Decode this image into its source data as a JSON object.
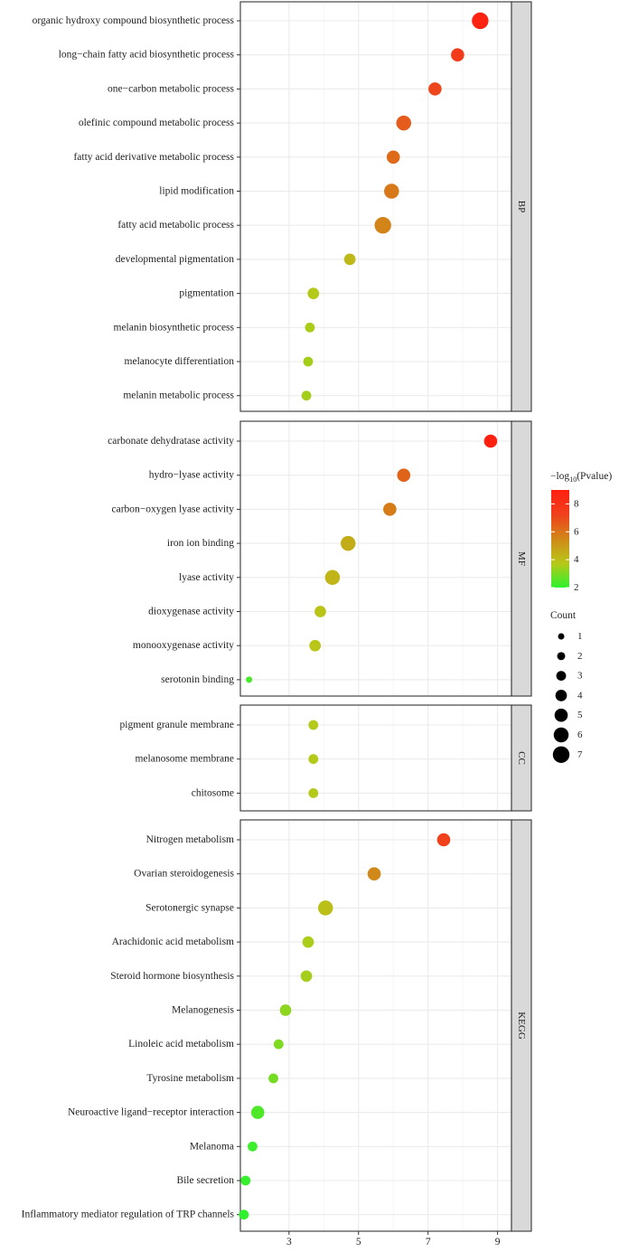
{
  "chart_data": {
    "type": "scatter",
    "subtype": "dot-plot enrichment",
    "x_ticks": [
      3,
      5,
      7,
      9
    ],
    "xlim": [
      1.6,
      9.4
    ],
    "color_scale": {
      "title": "−log10(Pvalue)",
      "title_base": "−log",
      "title_sub": "10",
      "title_rest": "(Pvalue)",
      "min": 2,
      "max": 9,
      "ticks": [
        2,
        4,
        6,
        8
      ],
      "stops": [
        "#2ef22e",
        "#b8c818",
        "#d08818",
        "#f0401c",
        "#ff2010"
      ]
    },
    "size_legend": {
      "title": "Count",
      "values": [
        1,
        2,
        3,
        4,
        5,
        6,
        7
      ]
    },
    "panels": [
      {
        "name": "BP",
        "terms": [
          {
            "label": "organic hydroxy compound biosynthetic process",
            "x": 8.5,
            "count": 7,
            "p": 8.9
          },
          {
            "label": "long−chain fatty acid biosynthetic process",
            "x": 7.85,
            "count": 5,
            "p": 7.6
          },
          {
            "label": "one−carbon metabolic process",
            "x": 7.2,
            "count": 5,
            "p": 7.1
          },
          {
            "label": "olefinic compound metabolic process",
            "x": 6.3,
            "count": 6,
            "p": 6.6
          },
          {
            "label": "fatty acid derivative metabolic process",
            "x": 6.0,
            "count": 5,
            "p": 6.2
          },
          {
            "label": "lipid modification",
            "x": 5.95,
            "count": 6,
            "p": 5.9
          },
          {
            "label": "fatty acid metabolic process",
            "x": 5.7,
            "count": 7,
            "p": 5.6
          },
          {
            "label": "developmental pigmentation",
            "x": 4.75,
            "count": 4,
            "p": 4.2
          },
          {
            "label": "pigmentation",
            "x": 3.7,
            "count": 4,
            "p": 3.7
          },
          {
            "label": "melanin biosynthetic process",
            "x": 3.6,
            "count": 3,
            "p": 3.6
          },
          {
            "label": "melanocyte differentiation",
            "x": 3.55,
            "count": 3,
            "p": 3.5
          },
          {
            "label": "melanin metabolic process",
            "x": 3.5,
            "count": 3,
            "p": 3.5
          }
        ]
      },
      {
        "name": "MF",
        "terms": [
          {
            "label": "carbonate dehydratase activity",
            "x": 8.8,
            "count": 5,
            "p": 9.0
          },
          {
            "label": "hydro−lyase activity",
            "x": 6.3,
            "count": 5,
            "p": 6.4
          },
          {
            "label": "carbon−oxygen lyase activity",
            "x": 5.9,
            "count": 5,
            "p": 5.8
          },
          {
            "label": "iron ion binding",
            "x": 4.7,
            "count": 6,
            "p": 4.5
          },
          {
            "label": "lyase activity",
            "x": 4.25,
            "count": 6,
            "p": 4.3
          },
          {
            "label": "dioxygenase activity",
            "x": 3.9,
            "count": 4,
            "p": 3.9
          },
          {
            "label": "monooxygenase activity",
            "x": 3.75,
            "count": 4,
            "p": 3.8
          },
          {
            "label": "serotonin binding",
            "x": 1.85,
            "count": 1,
            "p": 2.3
          }
        ]
      },
      {
        "name": "CC",
        "terms": [
          {
            "label": "pigment granule membrane",
            "x": 3.7,
            "count": 3,
            "p": 3.7
          },
          {
            "label": "melanosome membrane",
            "x": 3.7,
            "count": 3,
            "p": 3.7
          },
          {
            "label": "chitosome",
            "x": 3.7,
            "count": 3,
            "p": 3.7
          }
        ]
      },
      {
        "name": "KEGG",
        "terms": [
          {
            "label": "Nitrogen metabolism",
            "x": 7.45,
            "count": 5,
            "p": 7.2
          },
          {
            "label": "Ovarian steroidogenesis",
            "x": 5.45,
            "count": 5,
            "p": 5.5
          },
          {
            "label": "Serotonergic synapse",
            "x": 4.05,
            "count": 6,
            "p": 4.0
          },
          {
            "label": "Arachidonic acid metabolism",
            "x": 3.55,
            "count": 4,
            "p": 3.6
          },
          {
            "label": "Steroid hormone biosynthesis",
            "x": 3.5,
            "count": 4,
            "p": 3.5
          },
          {
            "label": "Melanogenesis",
            "x": 2.9,
            "count": 4,
            "p": 3.2
          },
          {
            "label": "Linoleic acid metabolism",
            "x": 2.7,
            "count": 3,
            "p": 3.0
          },
          {
            "label": "Tyrosine metabolism",
            "x": 2.55,
            "count": 3,
            "p": 2.9
          },
          {
            "label": "Neuroactive ligand−receptor interaction",
            "x": 2.1,
            "count": 5,
            "p": 2.4
          },
          {
            "label": "Melanoma",
            "x": 1.95,
            "count": 3,
            "p": 2.2
          },
          {
            "label": "Bile secretion",
            "x": 1.75,
            "count": 3,
            "p": 2.1
          },
          {
            "label": "Inflammatory mediator regulation of TRP channels",
            "x": 1.7,
            "count": 3,
            "p": 2.0
          }
        ]
      }
    ]
  }
}
